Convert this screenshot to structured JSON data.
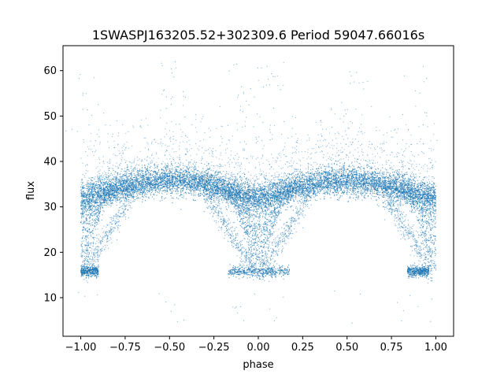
{
  "chart_data": {
    "type": "scatter",
    "title": "1SWASPJ163205.52+302309.6 Period 59047.66016s",
    "xlabel": "phase",
    "ylabel": "flux",
    "xlim": [
      -1.1,
      1.1
    ],
    "ylim": [
      1.5,
      65.5
    ],
    "x_ticks": [
      -1.0,
      -0.75,
      -0.5,
      -0.25,
      0.0,
      0.25,
      0.5,
      0.75,
      1.0
    ],
    "x_tick_labels": [
      "−1.00",
      "−0.75",
      "−0.50",
      "−0.25",
      "0.00",
      "0.25",
      "0.50",
      "0.75",
      "1.00"
    ],
    "y_ticks": [
      10,
      20,
      30,
      40,
      50,
      60
    ],
    "y_tick_labels": [
      "10",
      "20",
      "30",
      "40",
      "50",
      "60"
    ],
    "grid": false,
    "marker_color": "#1f77b4",
    "series": [
      {
        "description_points_phase_flux": [
          [
            -1.0,
            31.0
          ],
          [
            -0.9,
            32.5
          ],
          [
            -0.8,
            33.8
          ],
          [
            -0.75,
            34.3
          ],
          [
            -0.7,
            35.0
          ],
          [
            -0.6,
            35.8
          ],
          [
            -0.5,
            36.0
          ],
          [
            -0.45,
            35.6
          ],
          [
            -0.4,
            35.0
          ],
          [
            -0.3,
            33.8
          ],
          [
            -0.25,
            33.0
          ],
          [
            -0.2,
            32.0
          ],
          [
            -0.1,
            30.5
          ],
          [
            0.0,
            29.0
          ],
          [
            0.1,
            30.5
          ],
          [
            0.2,
            32.0
          ],
          [
            0.25,
            33.0
          ],
          [
            0.3,
            33.8
          ],
          [
            0.4,
            35.0
          ],
          [
            0.5,
            36.0
          ],
          [
            0.6,
            35.6
          ],
          [
            0.7,
            35.0
          ],
          [
            0.75,
            34.3
          ],
          [
            0.8,
            33.8
          ],
          [
            0.9,
            32.5
          ],
          [
            1.0,
            31.0
          ],
          [
            -0.98,
            16.0
          ],
          [
            -0.95,
            15.5
          ],
          [
            -0.93,
            17.0
          ],
          [
            -0.2,
            16.0
          ],
          [
            -0.1,
            15.5
          ],
          [
            0.0,
            15.8
          ],
          [
            0.1,
            16.0
          ],
          [
            0.8,
            16.0
          ],
          [
            0.9,
            15.5
          ],
          [
            1.0,
            16.2
          ],
          [
            -0.95,
            24.0
          ],
          [
            -0.9,
            20.0
          ],
          [
            -0.15,
            22.0
          ],
          [
            0.05,
            20.0
          ],
          [
            0.15,
            24.0
          ],
          [
            0.9,
            22.0
          ],
          [
            0.95,
            25.0
          ],
          [
            -0.55,
            45.0
          ],
          [
            -0.6,
            47.0
          ],
          [
            0.4,
            47.0
          ],
          [
            0.35,
            45.0
          ],
          [
            -0.97,
            60.0
          ],
          [
            -0.1,
            55.0
          ],
          [
            0.9,
            50.0
          ],
          [
            0.2,
            55.0
          ],
          [
            -0.8,
            8.0
          ]
        ]
      }
    ]
  }
}
